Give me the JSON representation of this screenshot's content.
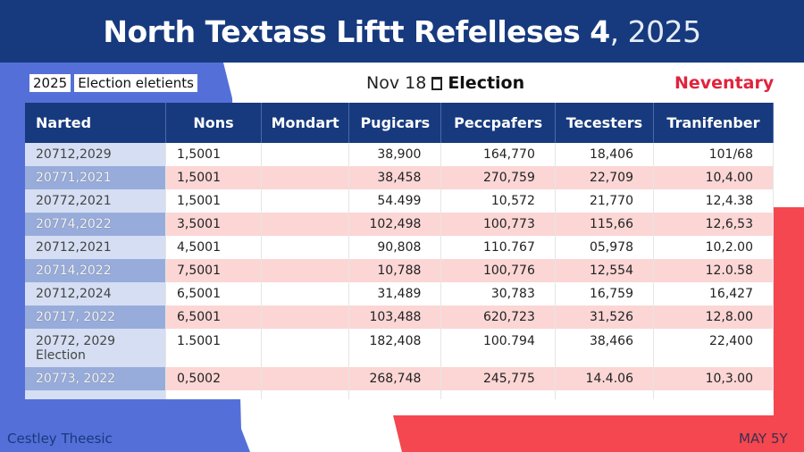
{
  "header": {
    "title": "North Textass Liftt Refelleses 4",
    "year": ", 2025"
  },
  "tags": [
    "2025",
    "Election eletients"
  ],
  "subtitle": {
    "date": "Nov 18",
    "label": "Election",
    "icon": "calendar-icon"
  },
  "right_label": "Neventary",
  "table": {
    "columns": [
      "Narted",
      "Nons",
      "Mondart",
      "Pugicars",
      "Peccpafers",
      "Tecesters",
      "Tranifenber"
    ],
    "rows": [
      [
        "20712,2029",
        "1,5001",
        "",
        "38,900",
        "164,770",
        "18,406",
        "101/68"
      ],
      [
        "20771,2021",
        "1,5001",
        "",
        "38,458",
        "270,759",
        "22,709",
        "10,4.00"
      ],
      [
        "20772,2021",
        "1,5001",
        "",
        "54.499",
        "10,572",
        "21,770",
        "12,4.38"
      ],
      [
        "20774,2022",
        "3,5001",
        "",
        "102,498",
        "100,773",
        "115,66",
        "12,6,53"
      ],
      [
        "20712,2021",
        "4,5001",
        "",
        "90,808",
        "110.767",
        "05,978",
        "10,2.00"
      ],
      [
        "20714,2022",
        "7,5001",
        "",
        "10,788",
        "100,776",
        "12,554",
        "12.0.58"
      ],
      [
        "20712,2024",
        "6,5001",
        "",
        "31,489",
        "30,783",
        "16,759",
        "16,427"
      ],
      [
        "20717, 2022",
        "6,5001",
        "",
        "103,488",
        "620,723",
        "31,526",
        "12,8.00"
      ],
      [
        "20772, 2029\nElection",
        "1.5001",
        "",
        "182,408",
        "100.794",
        "38,466",
        "22,400"
      ],
      [
        "20773, 2022",
        "0,5002",
        "",
        "268,748",
        "245,775",
        "14.4.06",
        "10,3.00"
      ]
    ]
  },
  "footer": {
    "left": "Cestley Theesic",
    "right": "MAY 5Y"
  },
  "colors": {
    "navy": "#173a7e",
    "blue": "#5470d8",
    "red": "#f4474f",
    "pink": "#fbd6d5"
  }
}
